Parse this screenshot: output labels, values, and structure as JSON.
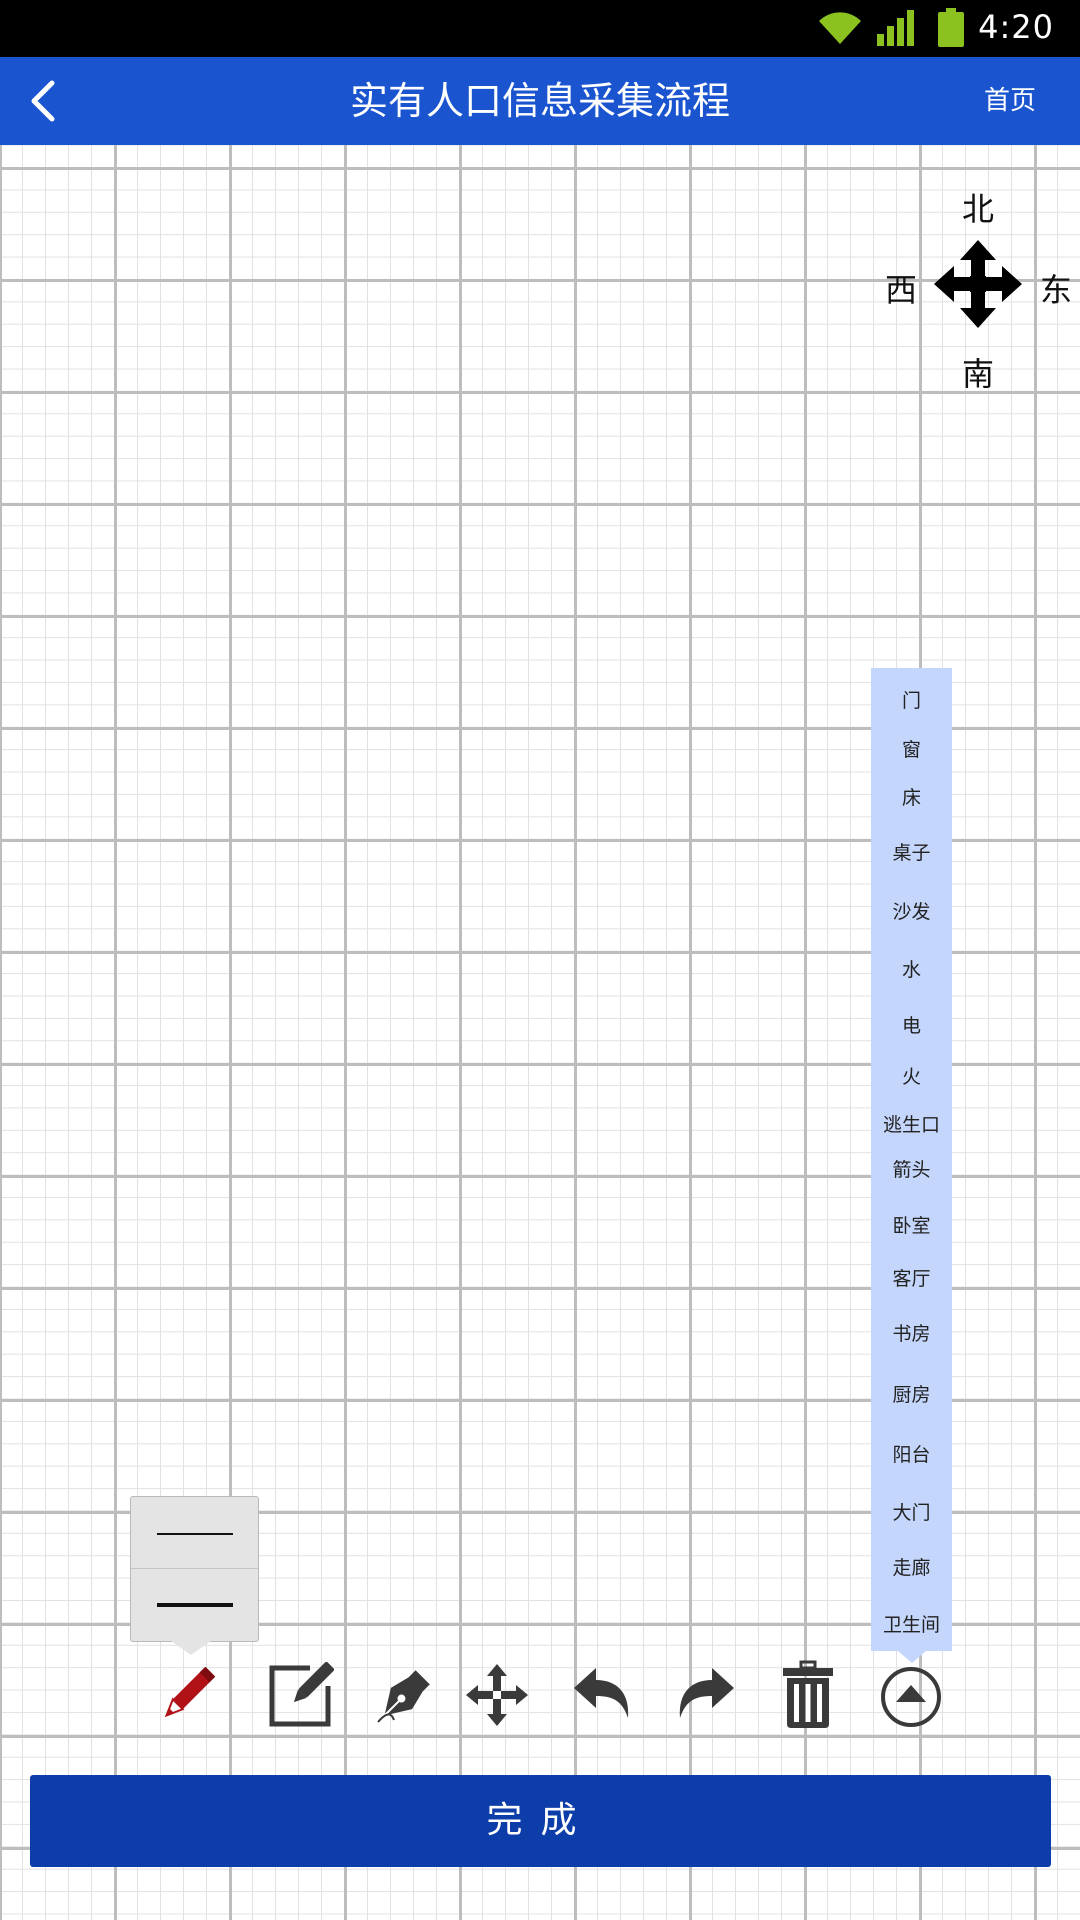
{
  "status_bar": {
    "time": "4:20"
  },
  "header": {
    "title": "实有人口信息采集流程",
    "home_label": "首页"
  },
  "compass": {
    "north": "北",
    "south": "南",
    "east": "东",
    "west": "西"
  },
  "palette": {
    "items": [
      "门",
      "窗",
      "床",
      "桌子",
      "沙发",
      "水",
      "电",
      "火",
      "逃生口",
      "箭头",
      "卧室",
      "客厅",
      "书房",
      "厨房",
      "阳台",
      "大门",
      "走廊",
      "卫生间"
    ]
  },
  "toolbar": {
    "tools": [
      "pencil-icon",
      "edit-icon",
      "pen-nib-icon",
      "move-icon",
      "undo-icon",
      "redo-icon",
      "trash-icon",
      "arrow-up-circle-icon"
    ],
    "active_color": "#b01218"
  },
  "line_widths": [
    "thin",
    "thick"
  ],
  "done_button": {
    "label": "完成"
  },
  "colors": {
    "header": "#1a55cf",
    "done": "#0d3da8",
    "palette": "#c4d6fb"
  }
}
